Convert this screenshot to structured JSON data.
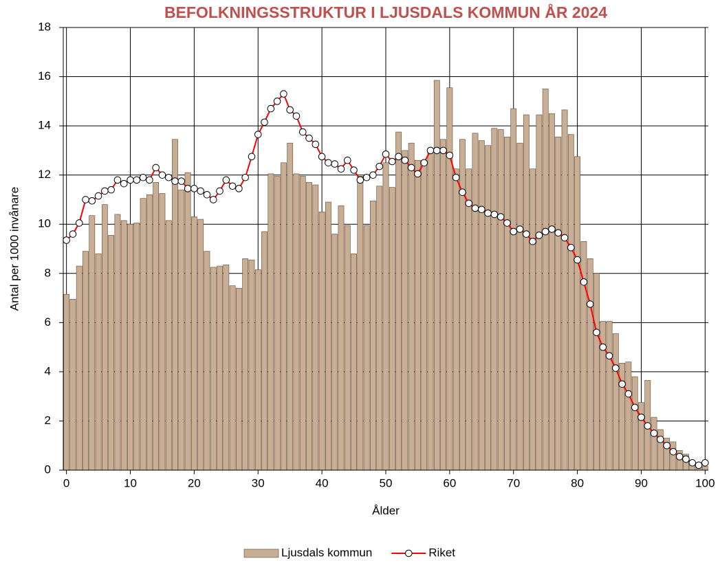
{
  "chart_data": {
    "type": "bar",
    "title": "BEFOLKNINGSSTRUKTUR I LJUSDALS KOMMUN ÅR 2024",
    "title_color": "#c0504d",
    "x_label": "Ålder",
    "y_label": "Antal per 1000 invånare",
    "x": [
      0,
      1,
      2,
      3,
      4,
      5,
      6,
      7,
      8,
      9,
      10,
      11,
      12,
      13,
      14,
      15,
      16,
      17,
      18,
      19,
      20,
      21,
      22,
      23,
      24,
      25,
      26,
      27,
      28,
      29,
      30,
      31,
      32,
      33,
      34,
      35,
      36,
      37,
      38,
      39,
      40,
      41,
      42,
      43,
      44,
      45,
      46,
      47,
      48,
      49,
      50,
      51,
      52,
      53,
      54,
      55,
      56,
      57,
      58,
      59,
      60,
      61,
      62,
      63,
      64,
      65,
      66,
      67,
      68,
      69,
      70,
      71,
      72,
      73,
      74,
      75,
      76,
      77,
      78,
      79,
      80,
      81,
      82,
      83,
      84,
      85,
      86,
      87,
      88,
      89,
      90,
      91,
      92,
      93,
      94,
      95,
      96,
      97,
      98,
      99,
      100
    ],
    "series": [
      {
        "name": "Ljusdals kommun",
        "type": "bar",
        "color": "#c9ae94",
        "values": [
          7.15,
          6.95,
          8.3,
          8.9,
          10.35,
          8.8,
          10.8,
          9.55,
          10.4,
          10.15,
          10.0,
          10.05,
          11.05,
          11.2,
          11.7,
          11.25,
          10.15,
          13.45,
          11.4,
          12.1,
          10.3,
          10.2,
          8.9,
          8.25,
          8.3,
          8.35,
          7.5,
          7.4,
          8.6,
          8.55,
          8.15,
          9.7,
          12.05,
          11.95,
          12.5,
          13.3,
          12.05,
          11.95,
          11.7,
          11.6,
          10.5,
          10.9,
          9.6,
          10.75,
          9.95,
          8.8,
          11.95,
          9.95,
          10.95,
          11.55,
          12.5,
          11.5,
          13.75,
          13.0,
          13.3,
          12.6,
          12.6,
          12.95,
          15.85,
          13.45,
          15.55,
          12.25,
          13.45,
          12.25,
          13.7,
          13.4,
          13.2,
          13.9,
          13.85,
          13.55,
          14.7,
          13.3,
          14.45,
          12.25,
          14.45,
          15.5,
          14.5,
          13.55,
          14.65,
          13.65,
          12.75,
          9.3,
          8.6,
          8.0,
          6.05,
          6.05,
          5.55,
          4.35,
          4.4,
          3.8,
          2.75,
          3.65,
          2.15,
          1.65,
          1.3,
          1.15,
          0.8,
          0.65,
          0.35,
          0.2,
          0.15
        ]
      },
      {
        "name": "Riket",
        "type": "line",
        "color": "#ff0000",
        "values": [
          9.35,
          9.6,
          10.05,
          11.0,
          10.95,
          11.15,
          11.35,
          11.4,
          11.8,
          11.65,
          11.8,
          11.8,
          11.9,
          11.8,
          12.3,
          12.0,
          11.9,
          11.75,
          11.75,
          11.45,
          11.45,
          11.35,
          11.2,
          11.0,
          11.35,
          11.8,
          11.55,
          11.45,
          11.9,
          12.75,
          13.65,
          14.15,
          14.7,
          15.0,
          15.3,
          14.65,
          14.4,
          13.75,
          13.5,
          13.25,
          12.75,
          12.5,
          12.45,
          12.25,
          12.6,
          12.2,
          11.8,
          11.9,
          12.0,
          12.35,
          12.85,
          12.55,
          12.75,
          12.6,
          12.3,
          12.05,
          12.5,
          13.0,
          13.0,
          13.0,
          12.8,
          11.9,
          11.3,
          10.85,
          10.65,
          10.6,
          10.45,
          10.4,
          10.3,
          10.05,
          9.7,
          9.8,
          9.6,
          9.3,
          9.55,
          9.7,
          9.8,
          9.65,
          9.45,
          9.05,
          8.55,
          7.65,
          6.75,
          5.6,
          5.0,
          4.65,
          4.15,
          3.5,
          3.1,
          2.55,
          2.15,
          1.8,
          1.5,
          1.25,
          1.0,
          0.75,
          0.55,
          0.45,
          0.3,
          0.2,
          0.3
        ]
      }
    ],
    "xlim": [
      -0.5,
      100.5
    ],
    "xticks": [
      0,
      10,
      20,
      30,
      40,
      50,
      60,
      70,
      80,
      90,
      100
    ],
    "ylim": [
      0,
      18
    ],
    "yticks": [
      0,
      2,
      4,
      6,
      8,
      10,
      12,
      14,
      16,
      18
    ],
    "grid": true,
    "legend": "bottom"
  }
}
